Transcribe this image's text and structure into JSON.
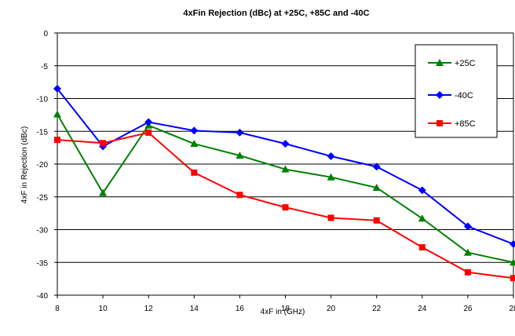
{
  "chart_data": {
    "type": "line",
    "title": "4xFin Rejection (dBc)  at +25C, +85C and -40C",
    "xlabel": "4xF in (GHz)",
    "ylabel": "4xF in Rejection (dBc)",
    "x": [
      8,
      10,
      12,
      14,
      16,
      18,
      20,
      22,
      24,
      26,
      28
    ],
    "xlim": [
      8,
      28
    ],
    "ylim": [
      -40,
      0
    ],
    "xticks": [
      "8",
      "10",
      "12",
      "14",
      "16",
      "18",
      "20",
      "22",
      "24",
      "26",
      "28"
    ],
    "yticks": [
      "0",
      "-5",
      "-10",
      "-15",
      "-20",
      "-25",
      "-30",
      "-35",
      "-40"
    ],
    "grid": "horizontal",
    "legend_position": "top-right",
    "series": [
      {
        "name": "+25C",
        "color": "#008000",
        "marker": "triangle",
        "values": [
          -12.4,
          -24.4,
          -14.1,
          -16.9,
          -18.7,
          -20.8,
          -22.0,
          -23.6,
          -28.3,
          -33.5,
          -35.0
        ]
      },
      {
        "name": "-40C",
        "color": "#0000ff",
        "marker": "diamond",
        "values": [
          -8.5,
          -17.3,
          -13.6,
          -14.9,
          -15.2,
          -16.9,
          -18.8,
          -20.4,
          -24.0,
          -29.5,
          -32.2
        ]
      },
      {
        "name": "+85C",
        "color": "#ff0000",
        "marker": "square",
        "values": [
          -16.3,
          -16.8,
          -15.2,
          -21.3,
          -24.7,
          -26.6,
          -28.2,
          -28.6,
          -32.7,
          -36.5,
          -37.4
        ]
      }
    ]
  }
}
